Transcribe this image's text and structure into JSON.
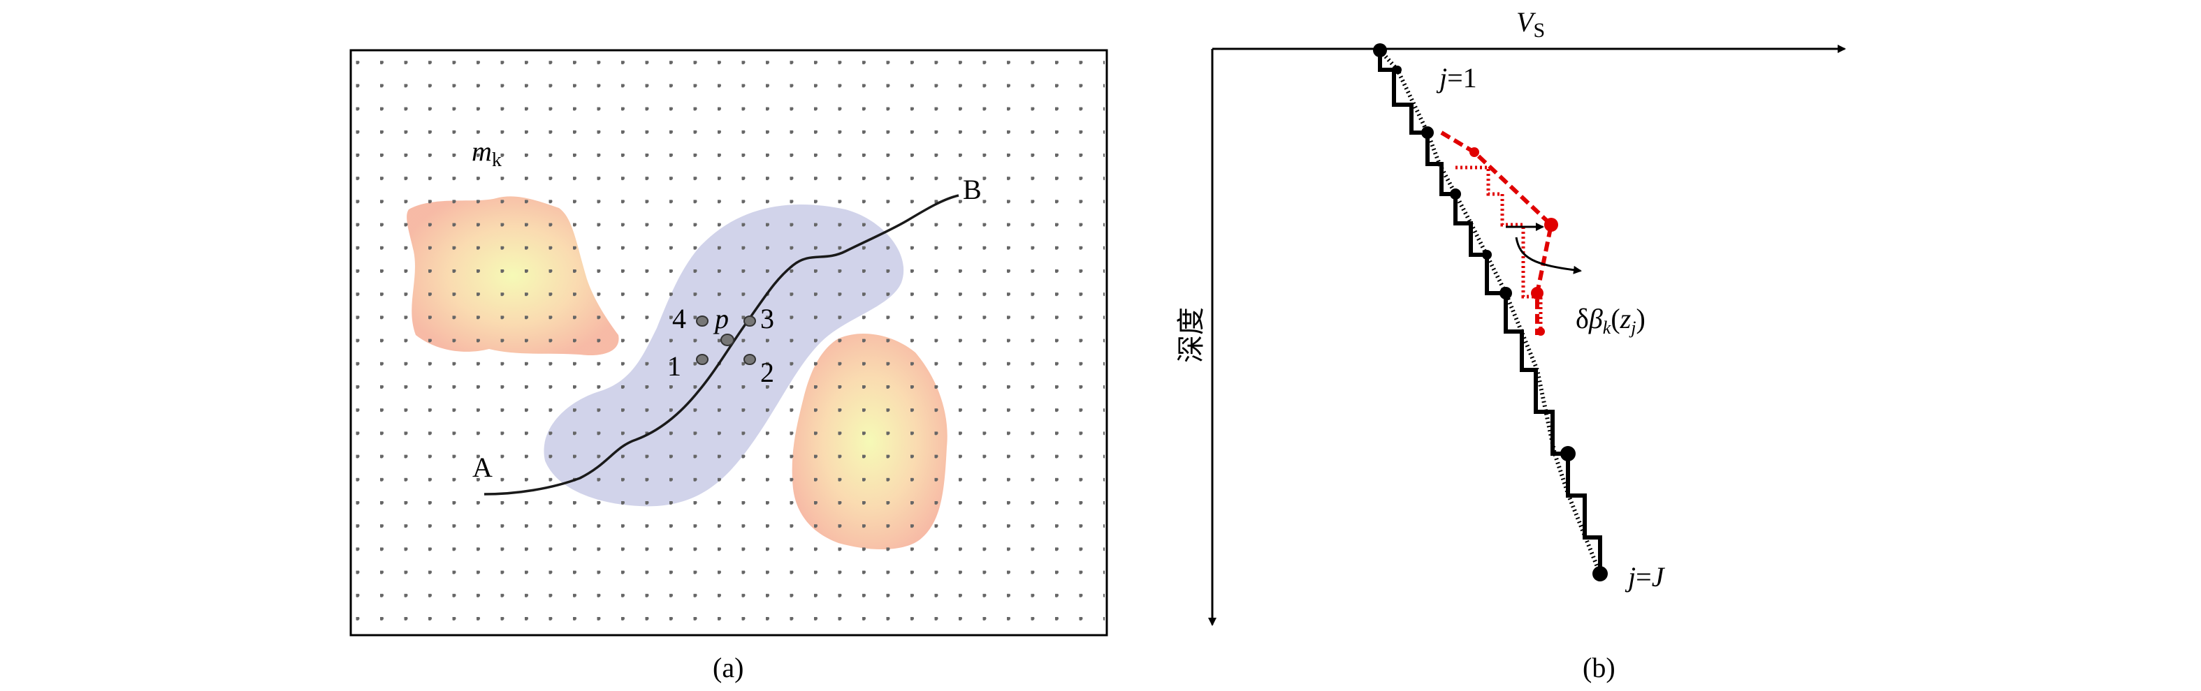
{
  "panel_a": {
    "label_mk_main": "m",
    "label_mk_sub": "k",
    "label_A": "A",
    "label_B": "B",
    "label_p": "p",
    "node_labels": [
      "1",
      "2",
      "3",
      "4"
    ],
    "caption": "(a)",
    "colors": {
      "blob_center": "#f4f7b0",
      "blob_edge": "#f6b59d",
      "band": "#c5c8e6",
      "grid_dot": "#555555",
      "frame": "#000000"
    }
  },
  "panel_b": {
    "axis_x_main": "V",
    "axis_x_sub": "S",
    "axis_y": "深度",
    "label_j1_italic": "j",
    "label_j1_rest": "=1",
    "label_jJ_italic": "j",
    "label_jJ_rest": "=",
    "label_jJ_end": "J",
    "delta_prefix": "δ",
    "delta_beta": "β",
    "delta_sub_k": "k",
    "delta_open": "(",
    "delta_z": "z",
    "delta_sub_j": "j",
    "delta_close": ")",
    "caption": "(b)",
    "colors": {
      "profile": "#000000",
      "perturbation": "#e00000"
    }
  }
}
